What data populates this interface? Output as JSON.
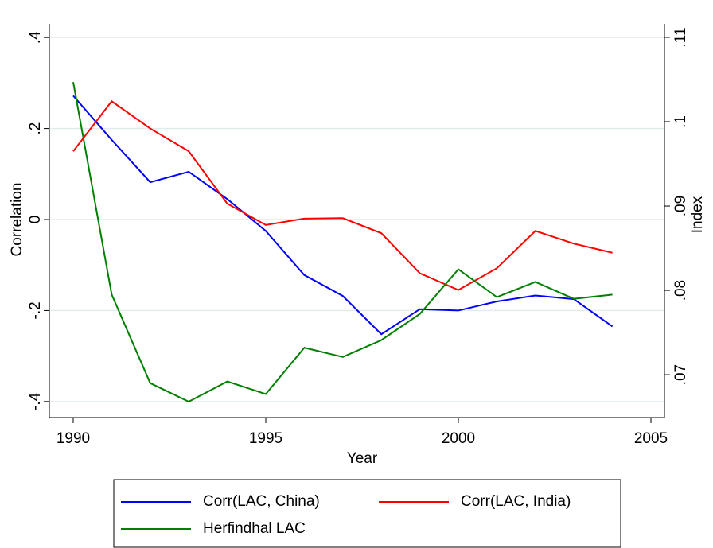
{
  "chart_data": {
    "type": "line",
    "x_label": "Year",
    "y_label": "Correlation",
    "y2_label": "Index",
    "x": [
      1990,
      1991,
      1992,
      1993,
      1994,
      1995,
      1996,
      1997,
      1998,
      1999,
      2000,
      2001,
      2002,
      2003,
      2004
    ],
    "xlim": [
      1990,
      2005
    ],
    "xticks": [
      1990,
      1995,
      2000,
      2005
    ],
    "ylim": [
      -0.43,
      0.43
    ],
    "yticks": [
      {
        "value": 0.4,
        "label": ".4"
      },
      {
        "value": 0.2,
        "label": ".2"
      },
      0,
      {
        "value": -0.2,
        "label": "-.2"
      },
      {
        "value": -0.4,
        "label": "-.4"
      }
    ],
    "y2lim": [
      0.0652,
      0.1116
    ],
    "y2ticks": [
      {
        "value": 0.11,
        "label": ".11"
      },
      {
        "value": 0.1,
        "label": ".1"
      },
      {
        "value": 0.09,
        "label": ".09"
      },
      {
        "value": 0.08,
        "label": ".08"
      },
      {
        "value": 0.07,
        "label": ".07"
      }
    ],
    "grid": true,
    "legend": "bottom",
    "series": [
      {
        "name": "Corr(LAC, China)",
        "color": "#0000ff",
        "values": [
          0.272,
          0.175,
          0.082,
          0.105,
          0.045,
          -0.025,
          -0.122,
          -0.168,
          -0.252,
          -0.197,
          -0.2,
          -0.18,
          -0.167,
          -0.175,
          -0.235
        ]
      },
      {
        "name": "Corr(LAC, India)",
        "color": "#ff0000",
        "values": [
          0.15,
          0.26,
          0.2,
          0.15,
          0.035,
          -0.012,
          0.002,
          0.003,
          -0.03,
          -0.118,
          -0.155,
          -0.107,
          -0.025,
          -0.053,
          -0.073
        ]
      },
      {
        "name": "Herfindhal LAC",
        "color": "#008000",
        "axis": "y2",
        "values": [
          0.1047,
          0.0795,
          0.069,
          0.0668,
          0.0692,
          0.0677,
          0.0732,
          0.0721,
          0.0741,
          0.0772,
          0.0825,
          0.0792,
          0.081,
          0.079,
          0.0795
        ]
      }
    ]
  }
}
